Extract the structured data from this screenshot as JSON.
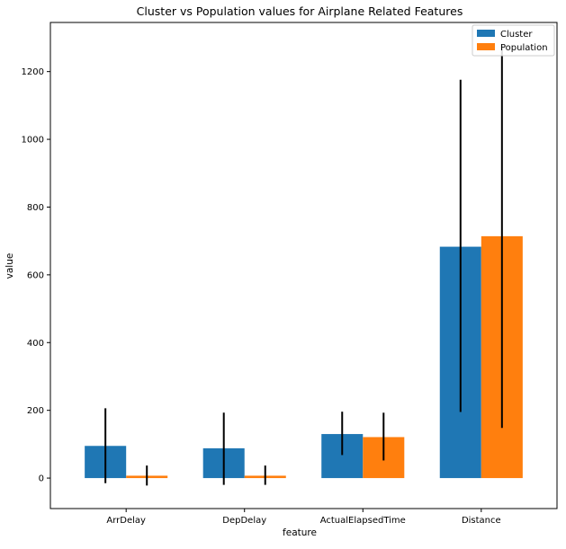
{
  "chart_data": {
    "type": "bar",
    "title": "Cluster vs Population values for Airplane Related Features",
    "xlabel": "feature",
    "ylabel": "value",
    "categories": [
      "ArrDelay",
      "DepDelay",
      "ActualElapsedTime",
      "Distance"
    ],
    "ylim": [
      -90,
      1345
    ],
    "yticks": [
      0,
      200,
      400,
      600,
      800,
      1000,
      1200
    ],
    "grid": false,
    "legend_position": "top-right",
    "series": [
      {
        "name": "Cluster",
        "color": "#1f77b4",
        "values": [
          95,
          88,
          130,
          683
        ],
        "error_low": [
          -15,
          -20,
          68,
          195
        ],
        "error_high": [
          206,
          193,
          196,
          1176
        ]
      },
      {
        "name": "Population",
        "color": "#ff7f0e",
        "values": [
          7,
          7,
          121,
          714
        ],
        "error_low": [
          -22,
          -20,
          52,
          148
        ],
        "error_high": [
          37,
          37,
          193,
          1280
        ]
      }
    ]
  }
}
